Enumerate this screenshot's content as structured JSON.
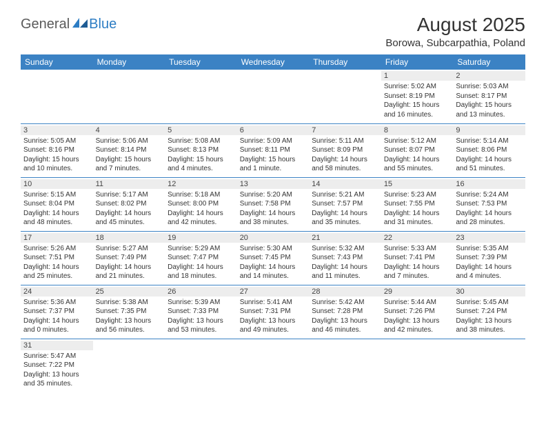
{
  "logo": {
    "general": "General",
    "blue": "Blue"
  },
  "title": "August 2025",
  "location": "Borowa, Subcarpathia, Poland",
  "colors": {
    "header_bg": "#3b82c4",
    "header_text": "#ffffff",
    "daynum_bg": "#ededed",
    "border": "#3b82c4",
    "logo_gray": "#5a5a5a",
    "logo_blue": "#2d7dc4"
  },
  "day_headers": [
    "Sunday",
    "Monday",
    "Tuesday",
    "Wednesday",
    "Thursday",
    "Friday",
    "Saturday"
  ],
  "weeks": [
    [
      {
        "n": "",
        "sr": "",
        "ss": "",
        "dl": ""
      },
      {
        "n": "",
        "sr": "",
        "ss": "",
        "dl": ""
      },
      {
        "n": "",
        "sr": "",
        "ss": "",
        "dl": ""
      },
      {
        "n": "",
        "sr": "",
        "ss": "",
        "dl": ""
      },
      {
        "n": "",
        "sr": "",
        "ss": "",
        "dl": ""
      },
      {
        "n": "1",
        "sr": "Sunrise: 5:02 AM",
        "ss": "Sunset: 8:19 PM",
        "dl": "Daylight: 15 hours and 16 minutes."
      },
      {
        "n": "2",
        "sr": "Sunrise: 5:03 AM",
        "ss": "Sunset: 8:17 PM",
        "dl": "Daylight: 15 hours and 13 minutes."
      }
    ],
    [
      {
        "n": "3",
        "sr": "Sunrise: 5:05 AM",
        "ss": "Sunset: 8:16 PM",
        "dl": "Daylight: 15 hours and 10 minutes."
      },
      {
        "n": "4",
        "sr": "Sunrise: 5:06 AM",
        "ss": "Sunset: 8:14 PM",
        "dl": "Daylight: 15 hours and 7 minutes."
      },
      {
        "n": "5",
        "sr": "Sunrise: 5:08 AM",
        "ss": "Sunset: 8:13 PM",
        "dl": "Daylight: 15 hours and 4 minutes."
      },
      {
        "n": "6",
        "sr": "Sunrise: 5:09 AM",
        "ss": "Sunset: 8:11 PM",
        "dl": "Daylight: 15 hours and 1 minute."
      },
      {
        "n": "7",
        "sr": "Sunrise: 5:11 AM",
        "ss": "Sunset: 8:09 PM",
        "dl": "Daylight: 14 hours and 58 minutes."
      },
      {
        "n": "8",
        "sr": "Sunrise: 5:12 AM",
        "ss": "Sunset: 8:07 PM",
        "dl": "Daylight: 14 hours and 55 minutes."
      },
      {
        "n": "9",
        "sr": "Sunrise: 5:14 AM",
        "ss": "Sunset: 8:06 PM",
        "dl": "Daylight: 14 hours and 51 minutes."
      }
    ],
    [
      {
        "n": "10",
        "sr": "Sunrise: 5:15 AM",
        "ss": "Sunset: 8:04 PM",
        "dl": "Daylight: 14 hours and 48 minutes."
      },
      {
        "n": "11",
        "sr": "Sunrise: 5:17 AM",
        "ss": "Sunset: 8:02 PM",
        "dl": "Daylight: 14 hours and 45 minutes."
      },
      {
        "n": "12",
        "sr": "Sunrise: 5:18 AM",
        "ss": "Sunset: 8:00 PM",
        "dl": "Daylight: 14 hours and 42 minutes."
      },
      {
        "n": "13",
        "sr": "Sunrise: 5:20 AM",
        "ss": "Sunset: 7:58 PM",
        "dl": "Daylight: 14 hours and 38 minutes."
      },
      {
        "n": "14",
        "sr": "Sunrise: 5:21 AM",
        "ss": "Sunset: 7:57 PM",
        "dl": "Daylight: 14 hours and 35 minutes."
      },
      {
        "n": "15",
        "sr": "Sunrise: 5:23 AM",
        "ss": "Sunset: 7:55 PM",
        "dl": "Daylight: 14 hours and 31 minutes."
      },
      {
        "n": "16",
        "sr": "Sunrise: 5:24 AM",
        "ss": "Sunset: 7:53 PM",
        "dl": "Daylight: 14 hours and 28 minutes."
      }
    ],
    [
      {
        "n": "17",
        "sr": "Sunrise: 5:26 AM",
        "ss": "Sunset: 7:51 PM",
        "dl": "Daylight: 14 hours and 25 minutes."
      },
      {
        "n": "18",
        "sr": "Sunrise: 5:27 AM",
        "ss": "Sunset: 7:49 PM",
        "dl": "Daylight: 14 hours and 21 minutes."
      },
      {
        "n": "19",
        "sr": "Sunrise: 5:29 AM",
        "ss": "Sunset: 7:47 PM",
        "dl": "Daylight: 14 hours and 18 minutes."
      },
      {
        "n": "20",
        "sr": "Sunrise: 5:30 AM",
        "ss": "Sunset: 7:45 PM",
        "dl": "Daylight: 14 hours and 14 minutes."
      },
      {
        "n": "21",
        "sr": "Sunrise: 5:32 AM",
        "ss": "Sunset: 7:43 PM",
        "dl": "Daylight: 14 hours and 11 minutes."
      },
      {
        "n": "22",
        "sr": "Sunrise: 5:33 AM",
        "ss": "Sunset: 7:41 PM",
        "dl": "Daylight: 14 hours and 7 minutes."
      },
      {
        "n": "23",
        "sr": "Sunrise: 5:35 AM",
        "ss": "Sunset: 7:39 PM",
        "dl": "Daylight: 14 hours and 4 minutes."
      }
    ],
    [
      {
        "n": "24",
        "sr": "Sunrise: 5:36 AM",
        "ss": "Sunset: 7:37 PM",
        "dl": "Daylight: 14 hours and 0 minutes."
      },
      {
        "n": "25",
        "sr": "Sunrise: 5:38 AM",
        "ss": "Sunset: 7:35 PM",
        "dl": "Daylight: 13 hours and 56 minutes."
      },
      {
        "n": "26",
        "sr": "Sunrise: 5:39 AM",
        "ss": "Sunset: 7:33 PM",
        "dl": "Daylight: 13 hours and 53 minutes."
      },
      {
        "n": "27",
        "sr": "Sunrise: 5:41 AM",
        "ss": "Sunset: 7:31 PM",
        "dl": "Daylight: 13 hours and 49 minutes."
      },
      {
        "n": "28",
        "sr": "Sunrise: 5:42 AM",
        "ss": "Sunset: 7:28 PM",
        "dl": "Daylight: 13 hours and 46 minutes."
      },
      {
        "n": "29",
        "sr": "Sunrise: 5:44 AM",
        "ss": "Sunset: 7:26 PM",
        "dl": "Daylight: 13 hours and 42 minutes."
      },
      {
        "n": "30",
        "sr": "Sunrise: 5:45 AM",
        "ss": "Sunset: 7:24 PM",
        "dl": "Daylight: 13 hours and 38 minutes."
      }
    ],
    [
      {
        "n": "31",
        "sr": "Sunrise: 5:47 AM",
        "ss": "Sunset: 7:22 PM",
        "dl": "Daylight: 13 hours and 35 minutes."
      },
      {
        "n": "",
        "sr": "",
        "ss": "",
        "dl": ""
      },
      {
        "n": "",
        "sr": "",
        "ss": "",
        "dl": ""
      },
      {
        "n": "",
        "sr": "",
        "ss": "",
        "dl": ""
      },
      {
        "n": "",
        "sr": "",
        "ss": "",
        "dl": ""
      },
      {
        "n": "",
        "sr": "",
        "ss": "",
        "dl": ""
      },
      {
        "n": "",
        "sr": "",
        "ss": "",
        "dl": ""
      }
    ]
  ]
}
